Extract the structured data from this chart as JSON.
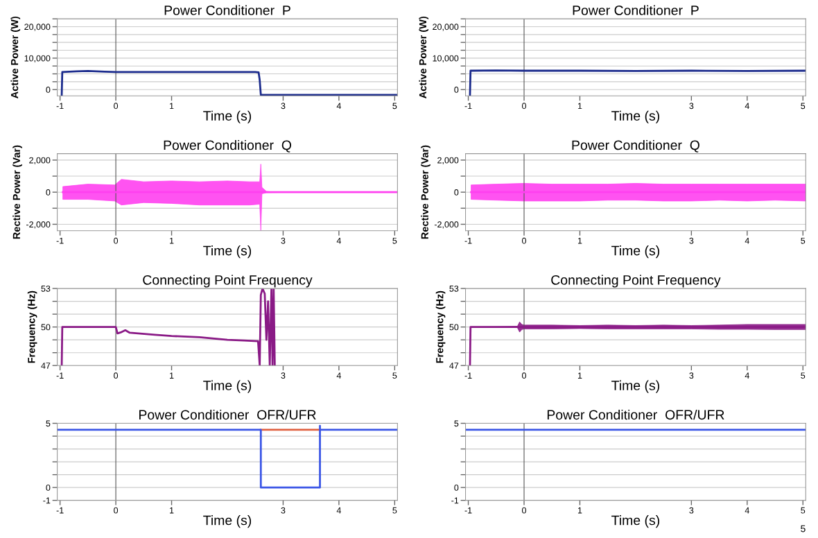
{
  "chart_data": [
    {
      "type": "line",
      "title": "Power Conditioner  P",
      "xlabel": "Time (s)",
      "ylabel": "Active Power (W)",
      "xlim": [
        -1.05,
        5.05
      ],
      "xticks": [
        -1,
        0,
        1,
        3,
        4,
        5
      ],
      "ylim": [
        -2000,
        22500
      ],
      "yticks": [
        {
          "value": 0,
          "label": "0"
        },
        {
          "value": 2500,
          "label": null
        },
        {
          "value": 5000,
          "label": null
        },
        {
          "value": 7500,
          "label": null
        },
        {
          "value": 10000,
          "label": "10,000"
        },
        {
          "value": 12500,
          "label": null
        },
        {
          "value": 15000,
          "label": null
        },
        {
          "value": 17500,
          "label": null
        },
        {
          "value": 20000,
          "label": "20,000"
        },
        {
          "value": 22500,
          "label": null
        }
      ],
      "grid": "y",
      "ref_lines": [
        {
          "axis": "x",
          "value": 0,
          "color": "#555555"
        }
      ],
      "series": [
        {
          "color": "#1a2a8c",
          "x": [
            -0.97,
            -0.96,
            -0.7,
            -0.5,
            -0.2,
            0,
            0.5,
            1,
            1.5,
            2,
            2.5,
            2.56,
            2.58,
            2.6,
            3,
            4,
            5.05
          ],
          "values": [
            -1700,
            5600,
            5800,
            5900,
            5700,
            5600,
            5600,
            5600,
            5600,
            5600,
            5600,
            5500,
            3000,
            -1700,
            -1700,
            -1700,
            -1700
          ]
        }
      ]
    },
    {
      "type": "line",
      "title": "Power Conditioner  P",
      "xlabel": "Time (s)",
      "ylabel": "Active Power (W)",
      "xlim": [
        -1.05,
        5.05
      ],
      "xticks": [
        -1,
        0,
        1,
        3,
        4,
        5
      ],
      "ylim": [
        -2000,
        22500
      ],
      "yticks": [
        {
          "value": 0,
          "label": "0"
        },
        {
          "value": 2500,
          "label": null
        },
        {
          "value": 5000,
          "label": null
        },
        {
          "value": 7500,
          "label": null
        },
        {
          "value": 10000,
          "label": "10,000"
        },
        {
          "value": 12500,
          "label": null
        },
        {
          "value": 15000,
          "label": null
        },
        {
          "value": 17500,
          "label": null
        },
        {
          "value": 20000,
          "label": "20,000"
        },
        {
          "value": 22500,
          "label": null
        }
      ],
      "grid": "y",
      "ref_lines": [
        {
          "axis": "x",
          "value": 0,
          "color": "#555555"
        }
      ],
      "series": [
        {
          "color": "#1a2a8c",
          "x": [
            -0.97,
            -0.96,
            -0.5,
            0,
            1,
            2,
            3,
            4,
            5.05
          ],
          "values": [
            -1700,
            6000,
            6100,
            6000,
            6000,
            5900,
            6000,
            5900,
            6000
          ]
        }
      ]
    },
    {
      "type": "line",
      "title": "Power Conditioner  Q",
      "xlabel": "Time (s)",
      "ylabel": "Rective Power (Var)",
      "xlim": [
        -1.05,
        5.05
      ],
      "xticks": [
        -1,
        0,
        1,
        3,
        4,
        5
      ],
      "ylim": [
        -2400,
        2400
      ],
      "yticks": [
        {
          "value": -2000,
          "label": "-2,000"
        },
        {
          "value": -1000,
          "label": null
        },
        {
          "value": 0,
          "label": "0"
        },
        {
          "value": 1000,
          "label": null
        },
        {
          "value": 2000,
          "label": "2,000"
        }
      ],
      "grid": "y",
      "ref_lines": [
        {
          "axis": "x",
          "value": 0,
          "color": "#555555"
        }
      ],
      "series": [
        {
          "color": "#ff40f0",
          "x": [
            -0.95,
            -0.5,
            -0.02,
            0.1,
            0.5,
            1,
            1.5,
            2,
            2.4,
            2.58,
            2.6,
            2.62,
            2.7,
            2.8,
            3,
            5.05
          ],
          "values": [
            0,
            0,
            0,
            0,
            0,
            0,
            0,
            0,
            0,
            0,
            0,
            0,
            0,
            0,
            0,
            0
          ],
          "upper": [
            350,
            500,
            450,
            800,
            650,
            700,
            650,
            700,
            650,
            650,
            1750,
            300,
            50,
            20,
            10,
            10
          ],
          "lower": [
            -450,
            -450,
            -550,
            -800,
            -650,
            -700,
            -800,
            -800,
            -800,
            -750,
            -2400,
            -100,
            -30,
            -20,
            -10,
            -10
          ]
        }
      ]
    },
    {
      "type": "line",
      "title": "Power Conditioner  Q",
      "xlabel": "Time (s)",
      "ylabel": "Rective Power (Var)",
      "xlim": [
        -1.05,
        5.05
      ],
      "xticks": [
        -1,
        0,
        1,
        3,
        4,
        5
      ],
      "ylim": [
        -2400,
        2400
      ],
      "yticks": [
        {
          "value": -2000,
          "label": "-2,000"
        },
        {
          "value": -1000,
          "label": null
        },
        {
          "value": 0,
          "label": "0"
        },
        {
          "value": 1000,
          "label": null
        },
        {
          "value": 2000,
          "label": "2,000"
        }
      ],
      "grid": "y",
      "ref_lines": [
        {
          "axis": "x",
          "value": 0,
          "color": "#555555"
        }
      ],
      "series": [
        {
          "color": "#ff40f0",
          "x": [
            -0.95,
            -0.5,
            0,
            0.5,
            1,
            1.5,
            2,
            2.5,
            3,
            3.5,
            4,
            4.5,
            5.05
          ],
          "values": [
            0,
            0,
            0,
            0,
            0,
            0,
            0,
            0,
            0,
            0,
            0,
            0,
            0
          ],
          "upper": [
            450,
            500,
            550,
            500,
            500,
            500,
            550,
            500,
            500,
            500,
            500,
            500,
            500
          ],
          "lower": [
            -450,
            -500,
            -550,
            -550,
            -550,
            -500,
            -500,
            -550,
            -550,
            -500,
            -550,
            -500,
            -550
          ]
        }
      ]
    },
    {
      "type": "line",
      "title": "Connecting Point Frequency",
      "xlabel": "Time (s)",
      "ylabel": "Frequency (Hz)",
      "xlim": [
        -1.05,
        5.05
      ],
      "xticks": [
        -1,
        0,
        1,
        3,
        4,
        5
      ],
      "ylim": [
        47,
        53
      ],
      "yticks": [
        47,
        {
          "value": 48,
          "label": null
        },
        {
          "value": 49,
          "label": null
        },
        50,
        {
          "value": 51,
          "label": null
        },
        {
          "value": 52,
          "label": null
        },
        53
      ],
      "grid": "y",
      "ref_lines": [
        {
          "axis": "x",
          "value": 0,
          "color": "#555555"
        }
      ],
      "series": [
        {
          "color": "#8a1a86",
          "x": [
            -0.97,
            -0.96,
            -0.5,
            0,
            0.03,
            0.1,
            0.17,
            0.25,
            0.4,
            0.7,
            1,
            1.5,
            2,
            2.3,
            2.55,
            2.58,
            2.6,
            2.63,
            2.67,
            2.7,
            2.73,
            2.76,
            2.79,
            2.81,
            2.83,
            2.85
          ],
          "values": [
            47,
            50,
            50,
            50,
            49.5,
            49.6,
            49.75,
            49.55,
            49.5,
            49.4,
            49.3,
            49.2,
            49.0,
            48.95,
            48.9,
            47,
            52.5,
            53,
            52.6,
            49,
            52,
            47,
            53,
            47,
            53,
            47
          ]
        }
      ]
    },
    {
      "type": "line",
      "title": "Connecting Point Frequency",
      "xlabel": "Time (s)",
      "ylabel": "Frequency (Hz)",
      "xlim": [
        -1.05,
        5.05
      ],
      "xticks": [
        -1,
        0,
        1,
        3,
        4,
        5
      ],
      "ylim": [
        47,
        53
      ],
      "yticks": [
        47,
        {
          "value": 48,
          "label": null
        },
        {
          "value": 49,
          "label": null
        },
        50,
        {
          "value": 51,
          "label": null
        },
        {
          "value": 52,
          "label": null
        },
        53
      ],
      "grid": "y",
      "ref_lines": [
        {
          "axis": "x",
          "value": 0,
          "color": "#555555"
        }
      ],
      "series": [
        {
          "color": "#8a1a86",
          "x": [
            -0.97,
            -0.96,
            -0.5,
            -0.12,
            -0.08,
            -0.04,
            0,
            0.5,
            1,
            1.5,
            2,
            2.5,
            3,
            3.5,
            4,
            4.5,
            5.05
          ],
          "values": [
            47,
            50,
            50,
            50,
            50,
            50,
            50,
            50,
            50,
            50,
            50,
            50,
            50,
            50,
            50,
            50,
            50
          ],
          "upper": [
            47,
            50,
            50.02,
            50.05,
            50.4,
            50.2,
            50.15,
            50.15,
            50.12,
            50.15,
            50.12,
            50.15,
            50.12,
            50.15,
            50.2,
            50.2,
            50.2
          ],
          "lower": [
            47,
            50,
            49.98,
            49.95,
            49.6,
            49.8,
            49.85,
            49.85,
            49.88,
            49.85,
            49.85,
            49.85,
            49.85,
            49.82,
            49.82,
            49.8,
            49.8
          ]
        }
      ]
    },
    {
      "type": "line",
      "title": "Power Conditioner  OFR/UFR",
      "xlim": [
        -1.05,
        5.05
      ],
      "xticks": [
        -1,
        0,
        1,
        3,
        4,
        5
      ],
      "xlabel": "Time (s)",
      "ylim": [
        -1,
        5
      ],
      "yticks": [
        -1,
        0,
        {
          "value": 1,
          "label": null
        },
        {
          "value": 2,
          "label": null
        },
        {
          "value": 3,
          "label": null
        },
        {
          "value": 4,
          "label": null
        },
        5
      ],
      "grid": "y",
      "ref_lines": [
        {
          "axis": "x",
          "value": 0,
          "color": "#555555"
        }
      ],
      "series": [
        {
          "color": "#e06040",
          "x": [
            2.6,
            3.66
          ],
          "values": [
            4.5,
            4.5
          ]
        },
        {
          "color": "#3a55e6",
          "x": [
            -1.05,
            2.6,
            2.6,
            3.66,
            3.66,
            3.66,
            5.05
          ],
          "values": [
            4.5,
            4.5,
            0,
            0,
            4.8,
            4.5,
            4.5
          ]
        }
      ]
    },
    {
      "type": "line",
      "title": "Power Conditioner  OFR/UFR",
      "xlim": [
        -1.05,
        5.05
      ],
      "xticks": [
        -1,
        0,
        1,
        3,
        4,
        5
      ],
      "xlabel": "Time (s)",
      "ylim": [
        -1,
        5
      ],
      "yticks": [
        -1,
        0,
        {
          "value": 1,
          "label": null
        },
        {
          "value": 2,
          "label": null
        },
        {
          "value": 3,
          "label": null
        },
        {
          "value": 4,
          "label": null
        },
        5
      ],
      "grid": "y",
      "ref_lines": [
        {
          "axis": "x",
          "value": 0,
          "color": "#555555"
        }
      ],
      "annotations": [
        "5"
      ],
      "series": [
        {
          "color": "#3a55e6",
          "x": [
            -1.05,
            5.05
          ],
          "values": [
            4.5,
            4.5
          ]
        }
      ]
    }
  ]
}
